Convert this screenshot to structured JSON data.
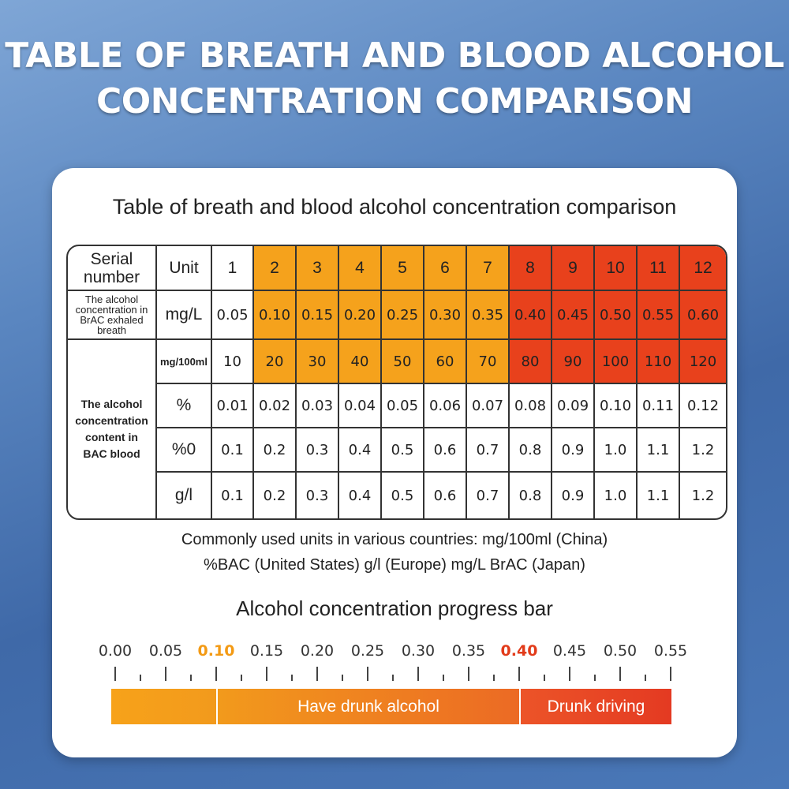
{
  "headline": {
    "line1": "TABLE OF BREATH AND BLOOD ALCOHOL",
    "line2": "CONCENTRATION COMPARISON"
  },
  "card_title": "Table of breath and blood alcohol concentration comparison",
  "table": {
    "header_label_line1": "Serial",
    "header_label_line2": "number",
    "unit_header": "Unit",
    "serials": [
      "1",
      "2",
      "3",
      "4",
      "5",
      "6",
      "7",
      "8",
      "9",
      "10",
      "11",
      "12"
    ],
    "breath_label": [
      "The alcohol",
      "concentration in",
      "BrAC exhaled",
      "breath"
    ],
    "blood_label": [
      "The alcohol",
      "concentration",
      "content in",
      "BAC blood"
    ],
    "rows": [
      {
        "unit": "mg/L",
        "values": [
          "0.05",
          "0.10",
          "0.15",
          "0.20",
          "0.25",
          "0.30",
          "0.35",
          "0.40",
          "0.45",
          "0.50",
          "0.55",
          "0.60"
        ],
        "highlight": true
      },
      {
        "unit": "mg/100ml",
        "values": [
          "10",
          "20",
          "30",
          "40",
          "50",
          "60",
          "70",
          "80",
          "90",
          "100",
          "110",
          "120"
        ],
        "highlight": true
      },
      {
        "unit": "%",
        "values": [
          "0.01",
          "0.02",
          "0.03",
          "0.04",
          "0.05",
          "0.06",
          "0.07",
          "0.08",
          "0.09",
          "0.10",
          "0.11",
          "0.12"
        ],
        "highlight": false
      },
      {
        "unit": "%0",
        "values": [
          "0.1",
          "0.2",
          "0.3",
          "0.4",
          "0.5",
          "0.6",
          "0.7",
          "0.8",
          "0.9",
          "1.0",
          "1.1",
          "1.2"
        ],
        "highlight": false
      },
      {
        "unit": "g/l",
        "values": [
          "0.1",
          "0.2",
          "0.3",
          "0.4",
          "0.5",
          "0.6",
          "0.7",
          "0.8",
          "0.9",
          "1.0",
          "1.1",
          "1.2"
        ],
        "highlight": false
      }
    ],
    "colors": {
      "orange": "#f5a21c",
      "red": "#e8411c"
    }
  },
  "notes": {
    "line1": "Commonly used units in various countries: mg/100ml (China)",
    "line2": "%BAC (United States) g/l (Europe) mg/L BrAC (Japan)"
  },
  "progress_bar": {
    "title": "Alcohol concentration progress bar",
    "scale": [
      "0.00",
      "0.05",
      "0.10",
      "0.15",
      "0.20",
      "0.25",
      "0.30",
      "0.35",
      "0.40",
      "0.45",
      "0.50",
      "0.55"
    ],
    "highlight_labels": {
      "0.10": "#f39a14",
      "0.40": "#e23b1a"
    },
    "segments": [
      {
        "label": "",
        "from": 0.0,
        "to": 0.1
      },
      {
        "label": "Have drunk alcohol",
        "from": 0.1,
        "to": 0.4
      },
      {
        "label": "Drunk driving",
        "from": 0.4,
        "to": 0.55
      }
    ]
  }
}
